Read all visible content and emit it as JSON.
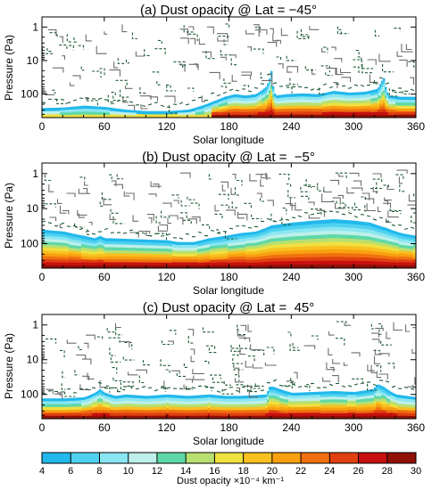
{
  "panels": [
    {
      "title": "(a) Dust opacity @ Lat = −45°",
      "ylabel": "Pressure (Pa)",
      "xlabel": "Solar longitude"
    },
    {
      "title": "(b) Dust opacity @ Lat =  −5°",
      "ylabel": "Pressure (Pa)",
      "xlabel": "Solar longitude"
    },
    {
      "title": "(c) Dust opacity @ Lat =  45°",
      "ylabel": "Pressure (Pa)",
      "xlabel": "Solar longitude"
    }
  ],
  "colorbar": {
    "label": "Dust opacity ×10⁻⁴ km⁻¹",
    "ticks": [
      "4",
      "6",
      "8",
      "10",
      "12",
      "14",
      "16",
      "18",
      "20",
      "22",
      "24",
      "26",
      "28",
      "30"
    ],
    "colors": [
      "#22b8ec",
      "#4fd2f0",
      "#8ae6f2",
      "#bdf0ea",
      "#5fd8a8",
      "#b8e070",
      "#f0e040",
      "#f8c020",
      "#f8a010",
      "#f07010",
      "#e04010",
      "#c81010",
      "#901008"
    ]
  },
  "chart_data": {
    "type": "heatmap",
    "x_axis": {
      "label": "Solar longitude",
      "range": [
        0,
        360
      ],
      "ticks": [
        0,
        60,
        120,
        180,
        240,
        300,
        360
      ]
    },
    "y_axis": {
      "label": "Pressure (Pa)",
      "scale": "log",
      "inverted": true,
      "range": [
        0.5,
        500
      ],
      "ticks": [
        1,
        10,
        100
      ]
    },
    "colorbar": {
      "label": "Dust opacity ×10⁻⁴ km⁻¹",
      "range": [
        4,
        30
      ],
      "step": 2
    },
    "panels": [
      {
        "title": "(a) Dust opacity @ Lat = −45°",
        "dust_top_pressure": [
          [
            0,
            260
          ],
          [
            20,
            250
          ],
          [
            40,
            220
          ],
          [
            60,
            240
          ],
          [
            80,
            290
          ],
          [
            100,
            320
          ],
          [
            120,
            320
          ],
          [
            140,
            290
          ],
          [
            155,
            210
          ],
          [
            165,
            160
          ],
          [
            175,
            120
          ],
          [
            185,
            100
          ],
          [
            195,
            110
          ],
          [
            205,
            100
          ],
          [
            215,
            60
          ],
          [
            220,
            20
          ],
          [
            224,
            110
          ],
          [
            235,
            100
          ],
          [
            250,
            95
          ],
          [
            265,
            100
          ],
          [
            280,
            80
          ],
          [
            295,
            90
          ],
          [
            310,
            85
          ],
          [
            322,
            70
          ],
          [
            328,
            30
          ],
          [
            333,
            110
          ],
          [
            345,
            120
          ],
          [
            360,
            120
          ]
        ]
      },
      {
        "title": "(b) Dust opacity @ Lat =  −5°",
        "dust_top_pressure": [
          [
            0,
            40
          ],
          [
            20,
            45
          ],
          [
            40,
            60
          ],
          [
            50,
            70
          ],
          [
            55,
            60
          ],
          [
            60,
            70
          ],
          [
            65,
            70
          ],
          [
            120,
            80
          ],
          [
            130,
            90
          ],
          [
            145,
            90
          ],
          [
            160,
            70
          ],
          [
            175,
            60
          ],
          [
            190,
            50
          ],
          [
            205,
            45
          ],
          [
            215,
            35
          ],
          [
            220,
            30
          ],
          [
            240,
            25
          ],
          [
            260,
            22
          ],
          [
            280,
            20
          ],
          [
            300,
            22
          ],
          [
            315,
            25
          ],
          [
            330,
            35
          ],
          [
            345,
            50
          ],
          [
            360,
            60
          ]
        ]
      },
      {
        "title": "(c) Dust opacity @ Lat =  45°",
        "dust_top_pressure": [
          [
            0,
            130
          ],
          [
            20,
            130
          ],
          [
            40,
            120
          ],
          [
            50,
            90
          ],
          [
            55,
            70
          ],
          [
            60,
            90
          ],
          [
            70,
            110
          ],
          [
            80,
            100
          ],
          [
            100,
            110
          ],
          [
            120,
            100
          ],
          [
            140,
            110
          ],
          [
            160,
            100
          ],
          [
            175,
            110
          ],
          [
            190,
            110
          ],
          [
            205,
            105
          ],
          [
            215,
            100
          ],
          [
            218,
            60
          ],
          [
            222,
            60
          ],
          [
            240,
            90
          ],
          [
            260,
            85
          ],
          [
            280,
            80
          ],
          [
            300,
            85
          ],
          [
            318,
            70
          ],
          [
            322,
            50
          ],
          [
            328,
            60
          ],
          [
            340,
            100
          ],
          [
            360,
            120
          ]
        ]
      }
    ]
  }
}
